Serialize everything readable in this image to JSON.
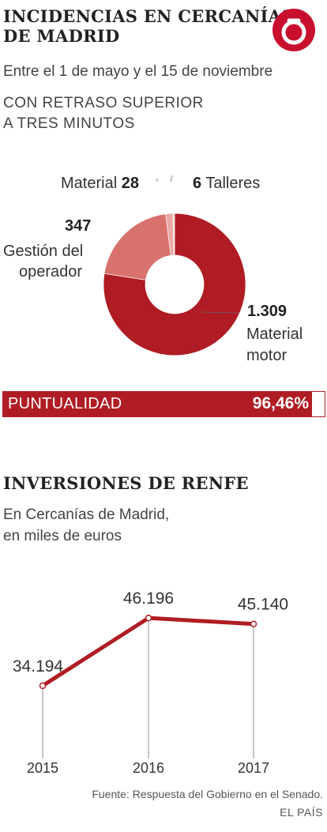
{
  "section1": {
    "title_line1": "INCIDENCIAS EN CERCANÍAS",
    "title_line2": "DE MADRID",
    "subtitle": "Entre el 1 de mayo y el 15 de noviembre",
    "label_line1": "CON RETRASO SUPERIOR",
    "label_line2": "A TRES MINUTOS"
  },
  "logo": {
    "icon": "el-pais-logo-icon",
    "color": "#c8102e"
  },
  "segments": {
    "material_motor": {
      "value": "1.309",
      "line1": "Material",
      "line2": "motor"
    },
    "gestion": {
      "value": "347",
      "line1": "Gestión del",
      "line2": "operador"
    },
    "material": {
      "value": "28",
      "label": "Material"
    },
    "talleres": {
      "value": "6",
      "label": "Talleres"
    }
  },
  "punctuality": {
    "label": "PUNTUALIDAD",
    "value_text": "96,46%",
    "value": 96.46
  },
  "section2": {
    "title": "INVERSIONES DE RENFE",
    "subtitle_line1": "En Cercanías de Madrid,",
    "subtitle_line2": "en miles de euros"
  },
  "chart_data": [
    {
      "type": "pie",
      "title": "CON RETRASO SUPERIOR A TRES MINUTOS",
      "categories": [
        "Material motor",
        "Gestión del operador",
        "Material",
        "Talleres"
      ],
      "values": [
        1309,
        347,
        28,
        6
      ],
      "colors": [
        "#b01c23",
        "#d8726d",
        "#e9a8a3",
        "#f3cfcc"
      ]
    },
    {
      "type": "line",
      "title": "INVERSIONES DE RENFE",
      "x": [
        "2015",
        "2016",
        "2017"
      ],
      "series": [
        {
          "values": [
            34194,
            46196,
            45140
          ],
          "color": "#b01c23"
        }
      ],
      "labels": [
        "34.194",
        "46.196",
        "45.140"
      ],
      "ylim": [
        0,
        50000
      ],
      "grid": false
    }
  ],
  "footer": {
    "source": "Fuente: Respuesta del Gobierno en el Senado.",
    "credit": "EL PAÍS"
  },
  "colors": {
    "accent": "#b01c23",
    "text": "#333333"
  }
}
